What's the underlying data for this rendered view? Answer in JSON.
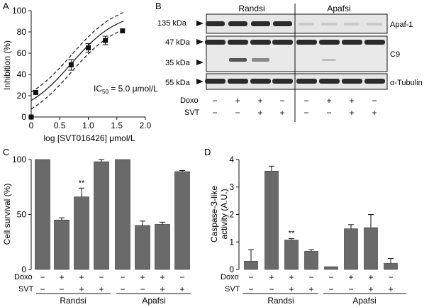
{
  "panel_labels": {
    "a": "A",
    "b": "B",
    "c": "C",
    "d": "D"
  },
  "colors": {
    "bar": "#6a6a6a",
    "ink": "#111111",
    "band": "#2b2b2b",
    "blot_bg": "#e4e4e4"
  },
  "panel_a": {
    "xlabel": "log [SVT016426] μmol/L",
    "ylabel": "Inhibition (%)",
    "xlim": [
      0.0,
      2.0
    ],
    "ylim": [
      0,
      100
    ],
    "xticks": [
      "0",
      "0.5",
      "1.0",
      "1.5",
      "2.0"
    ],
    "yticks": [
      "0",
      "20",
      "40",
      "60",
      "80",
      "100"
    ],
    "ic50_prefix": "IC",
    "ic50_sub": "50",
    "ic50_suffix": " = 5.0 μmol/L",
    "points": [
      {
        "x": 0.0,
        "y": 0,
        "err": 0
      },
      {
        "x": 0.08,
        "y": 23,
        "err": 0
      },
      {
        "x": 0.7,
        "y": 49,
        "err": 5
      },
      {
        "x": 1.0,
        "y": 65,
        "err": 4
      },
      {
        "x": 1.3,
        "y": 72,
        "err": 4
      },
      {
        "x": 1.6,
        "y": 81,
        "err": 0
      }
    ]
  },
  "panel_b": {
    "groups": [
      "Randsi",
      "Apafsi"
    ],
    "mw_labels": [
      "135 kDa",
      "47 kDa",
      "35 kDa",
      "55 kDa"
    ],
    "protein_labels": [
      "Apaf-1",
      "C9",
      "α-Tubulin"
    ],
    "row_labels": [
      "Doxo",
      "SVT"
    ],
    "doxo": [
      "−",
      "+",
      "+",
      "−",
      "−",
      "+",
      "+",
      "−"
    ],
    "svt": [
      "−",
      "−",
      "+",
      "+",
      "−",
      "−",
      "+",
      "+"
    ]
  },
  "panel_c": {
    "ylabel": "Cell survival (%)",
    "yticks": [
      "0",
      "50",
      "100"
    ],
    "ylim": [
      0,
      100
    ],
    "chart_data": {
      "type": "bar",
      "categories": [
        "Randsi -/-",
        "Randsi Doxo",
        "Randsi Doxo+SVT",
        "Randsi SVT",
        "Apafsi -/-",
        "Apafsi Doxo",
        "Apafsi Doxo+SVT",
        "Apafsi SVT"
      ],
      "values": [
        100,
        45,
        66,
        98,
        100,
        40,
        41,
        89
      ],
      "errors": [
        0,
        2,
        8,
        2,
        0,
        4,
        2,
        1
      ]
    },
    "significance": "**",
    "row_labels": [
      "Doxo",
      "SVT"
    ],
    "doxo": [
      "−",
      "+",
      "+",
      "−",
      "−",
      "+",
      "+",
      "−"
    ],
    "svt": [
      "−",
      "−",
      "+",
      "+",
      "−",
      "−",
      "+",
      "+"
    ],
    "groups": [
      "Randsi",
      "Apafsi"
    ]
  },
  "panel_d": {
    "ylabel_line1": "Caspase-3-like",
    "ylabel_line2": "activity (A.U.)",
    "yticks": [
      "0",
      "1",
      "2",
      "3",
      "4"
    ],
    "ylim": [
      0,
      4
    ],
    "chart_data": {
      "type": "bar",
      "categories": [
        "Randsi -/-",
        "Randsi Doxo",
        "Randsi Doxo+SVT",
        "Randsi SVT",
        "Apafsi -/-",
        "Apafsi Doxo",
        "Apafsi Doxo+SVT",
        "Apafsi SVT"
      ],
      "values": [
        0.3,
        3.58,
        1.07,
        0.66,
        0.1,
        1.48,
        1.52,
        0.22
      ],
      "errors": [
        0.42,
        0.18,
        0.05,
        0.06,
        0.0,
        0.15,
        0.48,
        0.18
      ]
    },
    "significance": "**",
    "row_labels": [
      "Doxo",
      "SVT"
    ],
    "doxo": [
      "−",
      "+",
      "+",
      "−",
      "−",
      "+",
      "+",
      "−"
    ],
    "svt": [
      "−",
      "−",
      "+",
      "+",
      "−",
      "−",
      "+",
      "+"
    ],
    "groups": [
      "Randsi",
      "Apafsi"
    ]
  }
}
